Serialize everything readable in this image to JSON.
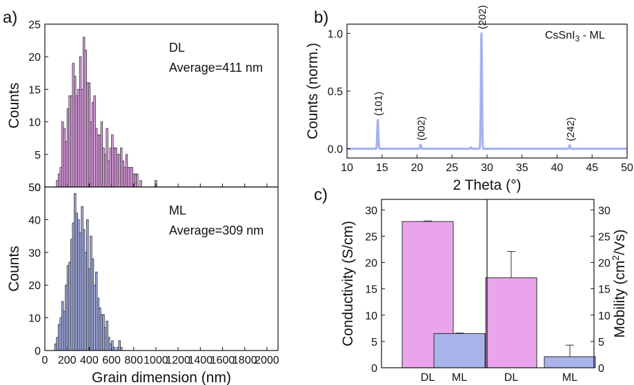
{
  "colors": {
    "dl": "#e9a4ec",
    "ml": "#a9b4ec",
    "ml_dark": "#6f7fd0",
    "xrd": "#a6b2ee",
    "axis": "#111111"
  },
  "panels": {
    "a": "a)",
    "b": "b)",
    "c": "c)"
  },
  "chart_data": [
    {
      "id": "a_top",
      "type": "bar",
      "ylabel": "Counts",
      "xlim": [
        0,
        2100
      ],
      "ylim": [
        0,
        25
      ],
      "yticks": [
        0,
        5,
        10,
        15,
        20,
        25
      ],
      "annotation": [
        "DL",
        "Average=411 nm"
      ],
      "bin_width": 16,
      "bars": [
        [
          112,
          1
        ],
        [
          128,
          2
        ],
        [
          144,
          3
        ],
        [
          160,
          10
        ],
        [
          176,
          9
        ],
        [
          192,
          7
        ],
        [
          208,
          12
        ],
        [
          224,
          14
        ],
        [
          240,
          14
        ],
        [
          256,
          19
        ],
        [
          272,
          17
        ],
        [
          288,
          14
        ],
        [
          304,
          15
        ],
        [
          320,
          20
        ],
        [
          336,
          15
        ],
        [
          352,
          23
        ],
        [
          368,
          21
        ],
        [
          384,
          16
        ],
        [
          400,
          16
        ],
        [
          416,
          10
        ],
        [
          432,
          13
        ],
        [
          448,
          14
        ],
        [
          464,
          9
        ],
        [
          480,
          8
        ],
        [
          496,
          8
        ],
        [
          512,
          10
        ],
        [
          528,
          6
        ],
        [
          544,
          5
        ],
        [
          560,
          9
        ],
        [
          576,
          4
        ],
        [
          592,
          6
        ],
        [
          608,
          8
        ],
        [
          624,
          6
        ],
        [
          640,
          6
        ],
        [
          656,
          5
        ],
        [
          672,
          5
        ],
        [
          688,
          6
        ],
        [
          704,
          4
        ],
        [
          720,
          3
        ],
        [
          736,
          5
        ],
        [
          752,
          3
        ],
        [
          768,
          3
        ],
        [
          784,
          3
        ],
        [
          800,
          2
        ],
        [
          816,
          2
        ],
        [
          832,
          2
        ],
        [
          864,
          1
        ],
        [
          1000,
          1
        ]
      ]
    },
    {
      "id": "a_bottom",
      "type": "bar",
      "ylabel": "Counts",
      "xlabel": "Grain dimension (nm)",
      "xlim": [
        0,
        2100
      ],
      "ylim": [
        0,
        50
      ],
      "xticks": [
        0,
        200,
        400,
        600,
        800,
        1000,
        1200,
        1400,
        1600,
        1800,
        2000
      ],
      "yticks": [
        0,
        10,
        20,
        30,
        40,
        50
      ],
      "annotation": [
        "ML",
        "Average=309 nm"
      ],
      "bin_width": 16,
      "bars": [
        [
          96,
          2
        ],
        [
          112,
          4
        ],
        [
          128,
          8
        ],
        [
          144,
          10
        ],
        [
          160,
          15
        ],
        [
          176,
          12
        ],
        [
          192,
          20
        ],
        [
          208,
          26
        ],
        [
          224,
          27
        ],
        [
          240,
          34
        ],
        [
          256,
          39
        ],
        [
          272,
          48
        ],
        [
          288,
          42
        ],
        [
          304,
          40
        ],
        [
          320,
          36
        ],
        [
          336,
          44
        ],
        [
          352,
          37
        ],
        [
          368,
          30
        ],
        [
          384,
          40
        ],
        [
          400,
          25
        ],
        [
          416,
          35
        ],
        [
          432,
          28
        ],
        [
          448,
          20
        ],
        [
          464,
          24
        ],
        [
          480,
          16
        ],
        [
          496,
          13
        ],
        [
          512,
          11
        ],
        [
          528,
          11
        ],
        [
          544,
          7
        ],
        [
          560,
          9
        ],
        [
          576,
          4
        ],
        [
          592,
          2
        ],
        [
          608,
          3
        ],
        [
          624,
          1
        ],
        [
          656,
          1
        ],
        [
          672,
          3
        ],
        [
          688,
          1
        ]
      ]
    },
    {
      "id": "b_xrd",
      "type": "line",
      "ylabel": "Counts (norm.)",
      "xlabel": "2 Theta (°)",
      "legend": {
        "main": "CsSnI",
        "sub": "3",
        "tail": " - ML"
      },
      "xlim": [
        10,
        50
      ],
      "ylim": [
        -0.08,
        1.08
      ],
      "xticks": [
        10,
        15,
        20,
        25,
        30,
        35,
        40,
        45,
        50
      ],
      "yticks": [
        0.0,
        0.5,
        1.0
      ],
      "ytick_labels": [
        "0.0",
        "0.5",
        "1.0"
      ],
      "peaks": [
        {
          "x": 14.4,
          "y": 0.25,
          "label": "(101)"
        },
        {
          "x": 20.5,
          "y": 0.035,
          "label": "(002)"
        },
        {
          "x": 27.7,
          "y": 0.012,
          "label": ""
        },
        {
          "x": 29.2,
          "y": 1.0,
          "label": "(202)"
        },
        {
          "x": 41.8,
          "y": 0.03,
          "label": "(242)"
        }
      ]
    },
    {
      "id": "c_bars",
      "type": "bar",
      "ylabel_left": "Conductivity (S/cm)",
      "ylabel_right": {
        "main": "Mobility (cm",
        "sup": "2",
        "tail": "/Vs)"
      },
      "ylim": [
        0,
        32
      ],
      "yticks": [
        0,
        5,
        10,
        15,
        20,
        25,
        30
      ],
      "categories": [
        "DL",
        "ML",
        "DL",
        "ML"
      ],
      "values": [
        27.8,
        6.5,
        17.1,
        2.1
      ],
      "errors": [
        0.1,
        0.1,
        5.0,
        2.2
      ],
      "series": [
        "dl",
        "ml",
        "dl",
        "ml"
      ]
    }
  ]
}
